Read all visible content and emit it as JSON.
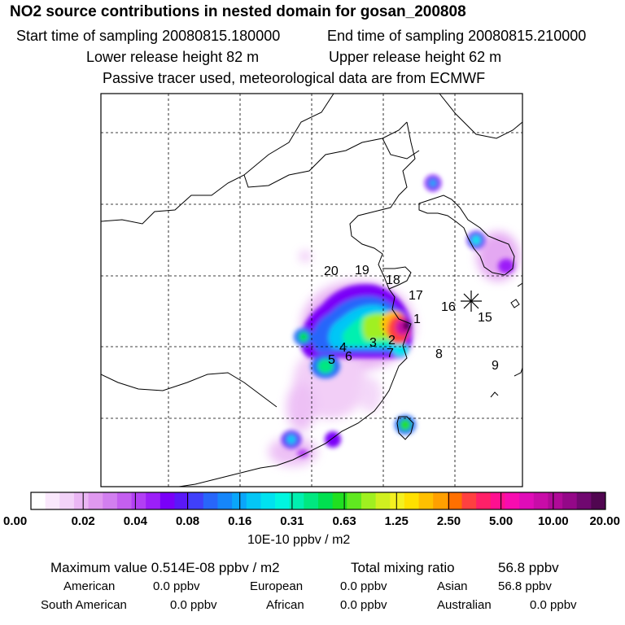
{
  "header": {
    "title": "NO2 source contributions in nested domain for gosan_200808",
    "start": "Start time of sampling 20080815.180000",
    "end": "End time of sampling 20080815.210000",
    "lower": "Lower release height   82 m",
    "upper": "Upper release height   62 m",
    "note": "Passive tracer used, meteorological data are from ECMWF"
  },
  "map": {
    "region_labels": [
      "1",
      "2",
      "3",
      "4",
      "5",
      "6",
      "7",
      "8",
      "9",
      "15",
      "16",
      "17",
      "18",
      "19",
      "20"
    ],
    "station_marker": "receptor-asterisk"
  },
  "colorbar": {
    "tick_labels": [
      "0.00",
      "0.02",
      "0.04",
      "0.08",
      "0.16",
      "0.31",
      "0.63",
      "1.25",
      "2.50",
      "5.00",
      "10.00",
      "20.00"
    ],
    "unit": "10E-10 ppbv / m2",
    "colors": [
      "#ffffff",
      "#fae8fc",
      "#f2d2f8",
      "#eab6f4",
      "#e099f0",
      "#d27ff0",
      "#c45ff0",
      "#b23ff4",
      "#9c1ff8",
      "#7a00f8",
      "#5a18f8",
      "#4040fa",
      "#2866fa",
      "#1686fa",
      "#0aa6fa",
      "#04c6f6",
      "#00e2f0",
      "#00f6e0",
      "#00f0b0",
      "#00e880",
      "#00e050",
      "#20e020",
      "#60e820",
      "#a0f020",
      "#d0f020",
      "#f4f020",
      "#ffe000",
      "#ffc000",
      "#ffa000",
      "#ff7000",
      "#ff4040",
      "#ff2068",
      "#ff1090",
      "#f80cb0",
      "#e00cb8",
      "#c80ca8",
      "#b00a98",
      "#940888",
      "#700870",
      "#500650"
    ]
  },
  "summary": {
    "max_label": "Maximum value  0.514E-08 ppbv / m2",
    "total_label": "Total mixing ratio",
    "total_value": "56.8 ppbv",
    "american_label": "American",
    "american_value": "0.0 ppbv",
    "european_label": "European",
    "european_value": "0.0 ppbv",
    "asian_label": "Asian",
    "asian_value": "56.8 ppbv",
    "samerican_label": "South American",
    "samerican_value": "0.0 ppbv",
    "african_label": "African",
    "african_value": "0.0 ppbv",
    "australian_label": "Australian",
    "australian_value": "0.0 ppbv"
  }
}
